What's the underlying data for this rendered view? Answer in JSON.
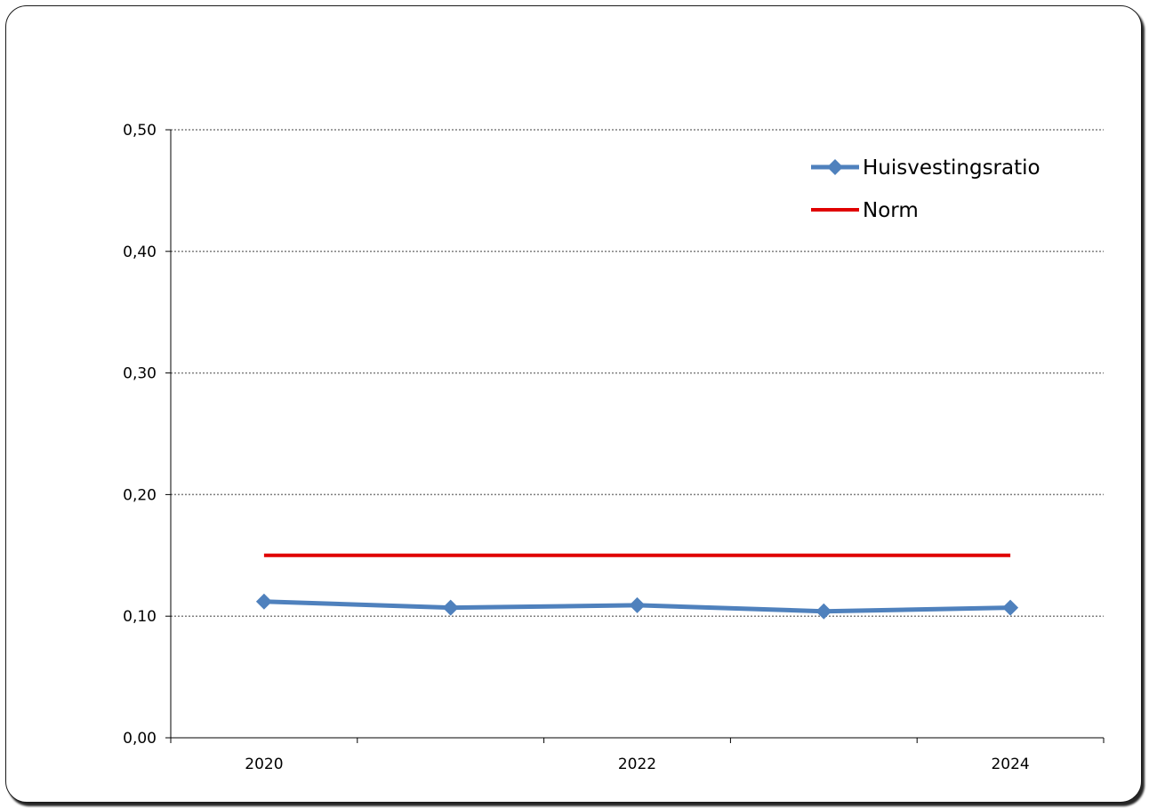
{
  "chart_data": {
    "type": "line",
    "categories": [
      "2020",
      "2021",
      "2022",
      "2023",
      "2024"
    ],
    "x_tick_labels": [
      "2020",
      "",
      "2022",
      "",
      "2024"
    ],
    "series": [
      {
        "name": "Huisvestingsratio",
        "values": [
          0.112,
          0.107,
          0.109,
          0.104,
          0.107
        ],
        "color": "#4f81bd",
        "marker": "diamond"
      },
      {
        "name": "Norm",
        "values": [
          0.15,
          0.15,
          0.15,
          0.15,
          0.15
        ],
        "color": "#e00000",
        "marker": "none"
      }
    ],
    "ylim": [
      0,
      0.5
    ],
    "y_ticks": [
      0,
      0.1,
      0.2,
      0.3,
      0.4,
      0.5
    ],
    "y_tick_labels": [
      "0,00",
      "0,10",
      "0,20",
      "0,30",
      "0,40",
      "0,50"
    ],
    "grid": "horizontal-dotted",
    "legend_position": "top-right",
    "title": "",
    "xlabel": "",
    "ylabel": ""
  }
}
